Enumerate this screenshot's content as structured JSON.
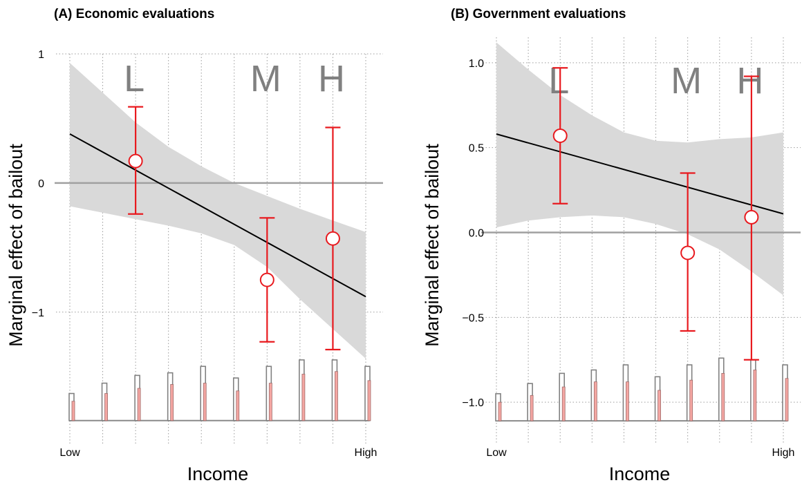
{
  "chart_data": [
    {
      "type": "line",
      "title": "(A) Economic evaluations",
      "xlabel": "Income",
      "ylabel": "Marginal effect of bailout",
      "x_tick_labels": [
        "Low",
        "High"
      ],
      "y_ticks": [
        1,
        0,
        -1
      ],
      "y_tick_labels": [
        "1",
        "0",
        "−1"
      ],
      "xlim": [
        0,
        9
      ],
      "ylim": [
        -1.9,
        1.0
      ],
      "grid": true,
      "reference_line_y": 0,
      "fit_line": {
        "x": [
          0,
          9
        ],
        "y": [
          0.38,
          -0.88
        ]
      },
      "confidence_band": {
        "x": [
          0,
          1,
          2,
          3,
          4,
          5,
          6,
          7,
          8,
          9
        ],
        "lower": [
          -0.18,
          -0.23,
          -0.28,
          -0.33,
          -0.39,
          -0.48,
          -0.65,
          -0.9,
          -1.13,
          -1.36
        ],
        "upper": [
          0.93,
          0.7,
          0.47,
          0.28,
          0.13,
          0.0,
          -0.1,
          -0.2,
          -0.29,
          -0.38
        ]
      },
      "group_estimates": [
        {
          "label": "L",
          "x": 2,
          "estimate": 0.17,
          "lower": -0.24,
          "upper": 0.59
        },
        {
          "label": "M",
          "x": 6,
          "estimate": -0.75,
          "lower": -1.23,
          "upper": -0.27
        },
        {
          "label": "H",
          "x": 8,
          "estimate": -0.43,
          "lower": -1.29,
          "upper": 0.43
        }
      ],
      "distribution_bars": {
        "x": [
          0,
          1,
          2,
          3,
          4,
          5,
          6,
          7,
          8,
          9
        ],
        "baseline": -1.84,
        "series": [
          {
            "color": "#808080",
            "values": [
              -1.63,
              -1.55,
              -1.49,
              -1.47,
              -1.42,
              -1.51,
              -1.42,
              -1.37,
              -1.37,
              -1.42
            ]
          },
          {
            "color": "#f4a6a2",
            "values": [
              -1.69,
              -1.63,
              -1.59,
              -1.56,
              -1.55,
              -1.61,
              -1.55,
              -1.48,
              -1.46,
              -1.53
            ]
          }
        ]
      }
    },
    {
      "type": "line",
      "title": "(B) Government evaluations",
      "xlabel": "Income",
      "ylabel": "Marginal effect of bailout",
      "x_tick_labels": [
        "Low",
        "High"
      ],
      "y_ticks": [
        1.0,
        0.5,
        0.0,
        -0.5,
        -1.0
      ],
      "y_tick_labels": [
        "1.0",
        "0.5",
        "0.0",
        "−0.5",
        "−1.0"
      ],
      "xlim": [
        0,
        9
      ],
      "ylim": [
        -1.15,
        1.15
      ],
      "grid": true,
      "reference_line_y": 0,
      "fit_line": {
        "x": [
          0,
          9
        ],
        "y": [
          0.58,
          0.11
        ]
      },
      "confidence_band": {
        "x": [
          0,
          1,
          2,
          3,
          4,
          5,
          6,
          7,
          8,
          9
        ],
        "lower": [
          0.03,
          0.07,
          0.09,
          0.1,
          0.09,
          0.05,
          -0.01,
          -0.1,
          -0.23,
          -0.37
        ],
        "upper": [
          1.12,
          0.96,
          0.81,
          0.69,
          0.59,
          0.54,
          0.53,
          0.55,
          0.56,
          0.59
        ]
      },
      "group_estimates": [
        {
          "label": "L",
          "x": 2,
          "estimate": 0.57,
          "lower": 0.17,
          "upper": 0.97
        },
        {
          "label": "M",
          "x": 6,
          "estimate": -0.12,
          "lower": -0.58,
          "upper": 0.35
        },
        {
          "label": "H",
          "x": 8,
          "estimate": 0.09,
          "lower": -0.75,
          "upper": 0.92
        }
      ],
      "distribution_bars": {
        "x": [
          0,
          1,
          2,
          3,
          4,
          5,
          6,
          7,
          8,
          9
        ],
        "baseline": -1.11,
        "series": [
          {
            "color": "#808080",
            "values": [
              -0.95,
              -0.89,
              -0.83,
              -0.81,
              -0.78,
              -0.85,
              -0.78,
              -0.74,
              -0.75,
              -0.78
            ]
          },
          {
            "color": "#f4a6a2",
            "values": [
              -1.0,
              -0.96,
              -0.91,
              -0.88,
              -0.88,
              -0.93,
              -0.87,
              -0.83,
              -0.81,
              -0.86
            ]
          }
        ]
      }
    }
  ],
  "colors": {
    "band": "#d9d9d9",
    "fit_line": "#000000",
    "estimate": "#e8191e",
    "reference": "#a0a0a0",
    "grid": "#9a9a9a",
    "group_letters": "#808080"
  }
}
